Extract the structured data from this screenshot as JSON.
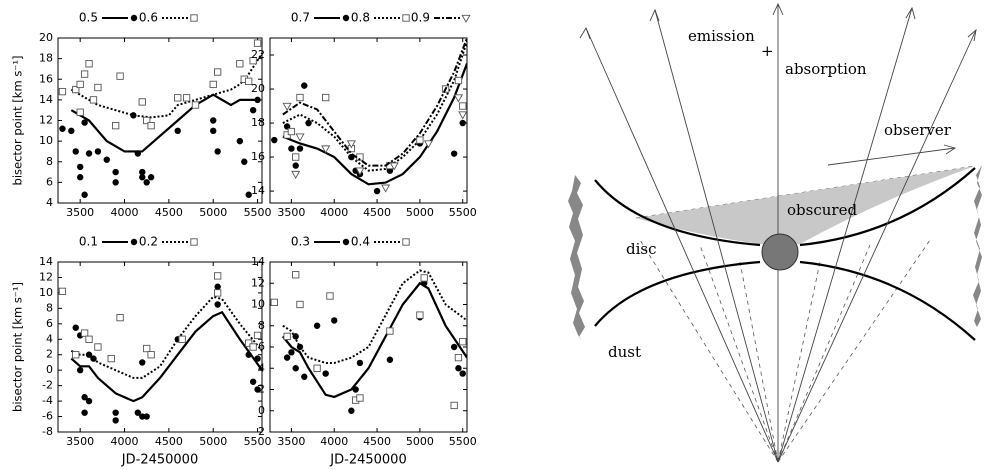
{
  "chart_data": [
    {
      "type": "scatter",
      "ylabel": "bisector point [km s⁻¹]",
      "xlim": [
        3250,
        5550
      ],
      "xticks": [
        3500,
        4000,
        4500,
        5000,
        5500
      ],
      "ylim": [
        4,
        20
      ],
      "yticks": [
        4,
        6,
        8,
        10,
        12,
        14,
        16,
        18,
        20
      ],
      "series": [
        {
          "name": "0.5",
          "color": "#000000",
          "marker": "circle",
          "dash": "solid",
          "points": {
            "x": [
              3300,
              3400,
              3450,
              3500,
              3500,
              3550,
              3550,
              3600,
              3700,
              3800,
              3900,
              3900,
              4100,
              4150,
              4200,
              4200,
              4250,
              4300,
              4600,
              5000,
              5000,
              5050,
              5300,
              5350,
              5400,
              5450,
              5500
            ],
            "y": [
              11.2,
              11,
              9,
              7.5,
              6.5,
              4.8,
              11.8,
              8.8,
              9,
              8.2,
              7,
              6,
              12.5,
              8.8,
              7,
              6.5,
              6,
              6.5,
              11,
              12,
              11,
              9,
              10,
              8,
              4.8,
              13,
              14
            ]
          },
          "line": {
            "x": [
              3400,
              3500,
              3600,
              3700,
              3800,
              4000,
              4200,
              4400,
              4600,
              4800,
              5000,
              5100,
              5200,
              5300,
              5500
            ],
            "y": [
              13,
              12.5,
              12,
              11,
              10,
              9,
              9,
              10.5,
              12,
              13.5,
              14.5,
              14,
              13.5,
              14,
              14
            ]
          }
        },
        {
          "name": "0.6",
          "color": "#000000",
          "marker": "square",
          "dash": "dotted",
          "points": {
            "x": [
              3300,
              3450,
              3500,
              3500,
              3550,
              3600,
              3650,
              3700,
              3950,
              3900,
              4200,
              4250,
              4300,
              4600,
              4700,
              4800,
              5000,
              5050,
              5300,
              5350,
              5400,
              5450,
              5500
            ],
            "y": [
              14.8,
              15,
              12.8,
              15.5,
              16.5,
              17.5,
              14,
              15.2,
              16.3,
              11.5,
              13.8,
              12,
              11.5,
              14.2,
              14.2,
              13.5,
              15.5,
              16.7,
              17.5,
              16,
              15.8,
              17.8,
              19.5
            ]
          },
          "line": {
            "x": [
              3400,
              3500,
              3600,
              3700,
              3900,
              4100,
              4300,
              4500,
              4600,
              4800,
              5000,
              5200,
              5300,
              5400,
              5550
            ],
            "y": [
              15,
              14.5,
              14,
              13.5,
              13,
              12.5,
              12.3,
              12.5,
              13.5,
              14,
              14.5,
              15,
              15.5,
              16.5,
              18.5
            ]
          }
        }
      ]
    },
    {
      "type": "scatter",
      "xlim": [
        3250,
        5550
      ],
      "xticks": [
        3500,
        4000,
        4500,
        5000,
        5500
      ],
      "ylim": [
        13.3,
        23
      ],
      "yticks": [
        14,
        16,
        18,
        20,
        22
      ],
      "series": [
        {
          "name": "0.7",
          "color": "#000000",
          "marker": "circle",
          "dash": "solid",
          "points": {
            "x": [
              3300,
              3450,
              3500,
              3550,
              3600,
              3650,
              3700,
              4200,
              4250,
              4300,
              4500,
              4650,
              5000,
              5400,
              5500
            ],
            "y": [
              17,
              17.8,
              16.5,
              15.5,
              16.5,
              20.2,
              18,
              16,
              15.2,
              15,
              14,
              15.2,
              16.8,
              16.2,
              18
            ]
          },
          "line": {
            "x": [
              3400,
              3600,
              3800,
              4000,
              4200,
              4400,
              4600,
              4800,
              5000,
              5200,
              5400,
              5550
            ],
            "y": [
              17.2,
              16.8,
              16.5,
              16,
              15,
              14.4,
              14.5,
              15,
              16,
              17.5,
              19.5,
              21.5
            ]
          }
        },
        {
          "name": "0.8",
          "color": "#000000",
          "marker": "square",
          "dash": "dotted",
          "points": {
            "x": [
              3450,
              3500,
              3550,
              3600,
              3900,
              4200,
              4300,
              4650,
              5000,
              5300,
              5450,
              5500
            ],
            "y": [
              17.3,
              17.5,
              16,
              19.5,
              19.5,
              16.5,
              16,
              15.5,
              17,
              20,
              20.5,
              19
            ]
          },
          "line": {
            "x": [
              3400,
              3600,
              3800,
              4000,
              4200,
              4400,
              4600,
              4800,
              5000,
              5200,
              5400,
              5550
            ],
            "y": [
              18,
              18.5,
              18,
              17.2,
              16,
              15.2,
              15.3,
              16,
              17,
              18.5,
              20.5,
              22.8
            ]
          }
        },
        {
          "name": "0.9",
          "color": "#000000",
          "marker": "triangle",
          "dash": "dashdot",
          "points": {
            "x": [
              3450,
              3550,
              3600,
              3900,
              4200,
              4300,
              4600,
              4700,
              5100,
              5450,
              5500
            ],
            "y": [
              19,
              15,
              17.2,
              16.5,
              16.8,
              15.2,
              14.2,
              15.5,
              16.8,
              19.5,
              18.5
            ]
          },
          "line": {
            "x": [
              3400,
              3600,
              3800,
              4000,
              4200,
              4400,
              4600,
              4800,
              5000,
              5200,
              5400,
              5550
            ],
            "y": [
              18.5,
              19.2,
              18.8,
              17.5,
              16.2,
              15.5,
              15.5,
              16.2,
              17.4,
              19,
              21,
              23
            ]
          }
        }
      ]
    },
    {
      "type": "scatter",
      "xlabel": "JD-2450000",
      "ylabel": "bisector point [km s⁻¹]",
      "xlim": [
        3250,
        5550
      ],
      "xticks": [
        3500,
        4000,
        4500,
        5000,
        5500
      ],
      "ylim": [
        -8,
        14
      ],
      "yticks": [
        -8,
        -6,
        -4,
        -2,
        0,
        2,
        4,
        6,
        8,
        10,
        12,
        14
      ],
      "series": [
        {
          "name": "0.1",
          "color": "#000000",
          "marker": "circle",
          "dash": "solid",
          "points": {
            "x": [
              3300,
              3450,
              3500,
              3500,
              3550,
              3550,
              3600,
              3600,
              3650,
              3900,
              3900,
              4150,
              4200,
              4250,
              4200,
              4600,
              5050,
              5050,
              5400,
              5450,
              5500,
              5500
            ],
            "y": [
              10.2,
              5.5,
              4.5,
              0,
              -3.5,
              -5.5,
              -4,
              2,
              1.5,
              -5.5,
              -6.5,
              -5.5,
              -6,
              -6,
              1,
              4,
              10.8,
              8.5,
              2,
              -1.5,
              -2.5,
              1.5
            ]
          },
          "line": {
            "x": [
              3400,
              3500,
              3600,
              3700,
              3900,
              4100,
              4200,
              4400,
              4600,
              4800,
              5000,
              5100,
              5300,
              5550
            ],
            "y": [
              1.5,
              0.5,
              0.5,
              -1,
              -3,
              -4,
              -3.5,
              -1,
              2,
              5,
              7,
              7.5,
              4,
              0
            ]
          }
        },
        {
          "name": "0.2",
          "color": "#000000",
          "marker": "square",
          "dash": "dotted",
          "points": {
            "x": [
              3300,
              3450,
              3550,
              3600,
              3700,
              3850,
              3950,
              4250,
              4300,
              4650,
              5050,
              5050,
              5400,
              5450,
              5500
            ],
            "y": [
              10.2,
              2,
              4.8,
              4,
              3,
              1.5,
              6.8,
              2.8,
              2,
              4,
              12.2,
              10,
              3.5,
              3,
              4.5
            ]
          },
          "line": {
            "x": [
              3400,
              3500,
              3600,
              3700,
              3900,
              4100,
              4200,
              4400,
              4600,
              4800,
              5000,
              5100,
              5300,
              5550
            ],
            "y": [
              2.5,
              2,
              2,
              1,
              0,
              -1,
              -1,
              0.5,
              4,
              7,
              9.5,
              9.2,
              6,
              2.5
            ]
          }
        }
      ]
    },
    {
      "type": "scatter",
      "xlabel": "JD-2450000",
      "xlim": [
        3250,
        5550
      ],
      "xticks": [
        3500,
        4000,
        4500,
        5000,
        5500
      ],
      "ylim": [
        -2,
        14
      ],
      "yticks": [
        -2,
        0,
        2,
        4,
        6,
        8,
        10,
        12,
        14
      ],
      "series": [
        {
          "name": "0.3",
          "color": "#000000",
          "marker": "circle",
          "dash": "solid",
          "points": {
            "x": [
              3300,
              3450,
              3500,
              3550,
              3550,
              3600,
              3650,
              3800,
              3900,
              4000,
              4200,
              4250,
              4300,
              4650,
              4650,
              5000,
              5050,
              5400,
              5450,
              5500
            ],
            "y": [
              10.2,
              5,
              5.5,
              4,
              7,
              6,
              3.2,
              8,
              3.5,
              8.5,
              0,
              2,
              4.5,
              4.8,
              7.5,
              8.8,
              12,
              6,
              4,
              3.5
            ]
          },
          "line": {
            "x": [
              3400,
              3500,
              3600,
              3700,
              3900,
              4000,
              4200,
              4400,
              4600,
              4800,
              5000,
              5100,
              5300,
              5550
            ],
            "y": [
              7,
              6,
              5.5,
              4,
              1.5,
              1.3,
              2,
              4,
              7,
              10,
              12,
              11.5,
              8,
              5
            ]
          }
        },
        {
          "name": "0.4",
          "color": "#000000",
          "marker": "square",
          "dash": "dotted",
          "points": {
            "x": [
              3300,
              3450,
              3550,
              3600,
              3800,
              3950,
              4250,
              4300,
              4650,
              5000,
              5050,
              5400,
              5450,
              5500
            ],
            "y": [
              10.2,
              7,
              12.8,
              10,
              4,
              10.8,
              1,
              1.2,
              7.5,
              9,
              12.5,
              0.5,
              5,
              6.5
            ]
          },
          "line": {
            "x": [
              3400,
              3500,
              3600,
              3700,
              3900,
              4000,
              4200,
              4400,
              4600,
              4800,
              5000,
              5100,
              5300,
              5550
            ],
            "y": [
              8,
              7.5,
              6,
              5,
              4.5,
              4.5,
              5,
              6,
              9,
              12,
              13.2,
              13,
              10,
              8.5
            ]
          }
        }
      ]
    }
  ],
  "diagram": {
    "labels": {
      "emission": "emission",
      "plus": "+",
      "absorption": "absorption",
      "observer": "observer",
      "obscured": "obscured",
      "disc": "disc",
      "dust": "dust"
    }
  }
}
